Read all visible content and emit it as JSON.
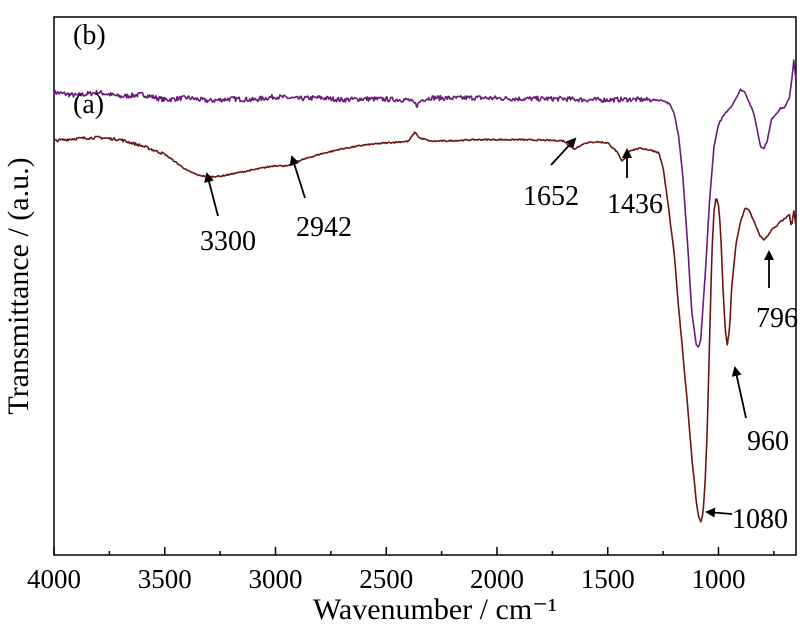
{
  "chart_data": {
    "type": "line",
    "xlabel": "Wavenumber / cm⁻¹",
    "ylabel": "Transmittance / (a.u.)",
    "xlim": [
      4000,
      650
    ],
    "x_reversed": true,
    "ylim": [
      0,
      100
    ],
    "grid": false,
    "xticks": [
      "4000",
      "3500",
      "3000",
      "2500",
      "2000",
      "1500",
      "1000"
    ],
    "xtick_values": [
      4000,
      3500,
      3000,
      2500,
      2000,
      1500,
      1000
    ],
    "series": [
      {
        "name": "(b)",
        "color": "#6a1b7a",
        "points": [
          [
            4000,
            86
          ],
          [
            3900,
            85.4
          ],
          [
            3800,
            86
          ],
          [
            3700,
            85.2
          ],
          [
            3600,
            85.6
          ],
          [
            3500,
            84.6
          ],
          [
            3400,
            85
          ],
          [
            3300,
            84.4
          ],
          [
            3200,
            84.8
          ],
          [
            3100,
            84.6
          ],
          [
            3000,
            85.2
          ],
          [
            2900,
            84.8
          ],
          [
            2800,
            85
          ],
          [
            2700,
            84.6
          ],
          [
            2600,
            84.8
          ],
          [
            2500,
            84.7
          ],
          [
            2400,
            84.6
          ],
          [
            2360,
            83.6
          ],
          [
            2340,
            84.6
          ],
          [
            2300,
            85
          ],
          [
            2200,
            84.9
          ],
          [
            2100,
            85
          ],
          [
            2000,
            84.9
          ],
          [
            1900,
            84.8
          ],
          [
            1800,
            84.8
          ],
          [
            1700,
            84.8
          ],
          [
            1600,
            84.6
          ],
          [
            1500,
            84.6
          ],
          [
            1400,
            84.7
          ],
          [
            1300,
            84.6
          ],
          [
            1250,
            84.5
          ],
          [
            1220,
            83.8
          ],
          [
            1200,
            82
          ],
          [
            1180,
            78
          ],
          [
            1160,
            70
          ],
          [
            1140,
            58
          ],
          [
            1120,
            45
          ],
          [
            1100,
            39
          ],
          [
            1090,
            38.6
          ],
          [
            1080,
            40
          ],
          [
            1060,
            52
          ],
          [
            1040,
            66
          ],
          [
            1020,
            76
          ],
          [
            1000,
            80
          ],
          [
            980,
            81.5
          ],
          [
            960,
            82.5
          ],
          [
            940,
            83.5
          ],
          [
            920,
            85
          ],
          [
            900,
            86.5
          ],
          [
            880,
            86
          ],
          [
            860,
            84
          ],
          [
            840,
            82
          ],
          [
            820,
            78
          ],
          [
            810,
            76
          ],
          [
            796,
            75.5
          ],
          [
            780,
            77
          ],
          [
            760,
            81
          ],
          [
            740,
            82
          ],
          [
            720,
            83
          ],
          [
            700,
            83.2
          ],
          [
            680,
            85
          ],
          [
            670,
            88
          ],
          [
            660,
            92
          ],
          [
            650,
            88
          ]
        ]
      },
      {
        "name": "(a)",
        "color": "#6b1616",
        "points": [
          [
            4000,
            77
          ],
          [
            3900,
            77.4
          ],
          [
            3800,
            77.6
          ],
          [
            3700,
            77.2
          ],
          [
            3600,
            76
          ],
          [
            3500,
            74.5
          ],
          [
            3450,
            73
          ],
          [
            3400,
            71.5
          ],
          [
            3350,
            70.6
          ],
          [
            3300,
            70.3
          ],
          [
            3250,
            70.4
          ],
          [
            3200,
            70.8
          ],
          [
            3100,
            71.6
          ],
          [
            3000,
            72.4
          ],
          [
            2942,
            72.3
          ],
          [
            2900,
            73.2
          ],
          [
            2800,
            74.5
          ],
          [
            2700,
            75.5
          ],
          [
            2600,
            76.2
          ],
          [
            2500,
            76.6
          ],
          [
            2400,
            76.9
          ],
          [
            2370,
            78.6
          ],
          [
            2350,
            77.5
          ],
          [
            2320,
            77.2
          ],
          [
            2300,
            76.9
          ],
          [
            2200,
            77
          ],
          [
            2100,
            77.2
          ],
          [
            2000,
            77.2
          ],
          [
            1900,
            77.2
          ],
          [
            1800,
            77.1
          ],
          [
            1700,
            77
          ],
          [
            1670,
            76
          ],
          [
            1652,
            75.4
          ],
          [
            1630,
            76
          ],
          [
            1600,
            76.6
          ],
          [
            1550,
            76.8
          ],
          [
            1500,
            76.6
          ],
          [
            1460,
            75
          ],
          [
            1436,
            73.2
          ],
          [
            1420,
            73.8
          ],
          [
            1400,
            75.2
          ],
          [
            1350,
            75.6
          ],
          [
            1300,
            75.2
          ],
          [
            1270,
            74.8
          ],
          [
            1250,
            72
          ],
          [
            1230,
            66
          ],
          [
            1200,
            56
          ],
          [
            1180,
            46
          ],
          [
            1160,
            37
          ],
          [
            1140,
            28
          ],
          [
            1120,
            18
          ],
          [
            1100,
            10
          ],
          [
            1090,
            7
          ],
          [
            1080,
            6.2
          ],
          [
            1070,
            7.5
          ],
          [
            1060,
            14
          ],
          [
            1050,
            24
          ],
          [
            1040,
            40
          ],
          [
            1030,
            56
          ],
          [
            1020,
            64
          ],
          [
            1010,
            66.5
          ],
          [
            1000,
            65
          ],
          [
            990,
            60
          ],
          [
            980,
            50
          ],
          [
            970,
            42
          ],
          [
            960,
            39
          ],
          [
            950,
            42
          ],
          [
            940,
            50
          ],
          [
            920,
            58
          ],
          [
            900,
            62
          ],
          [
            880,
            64.5
          ],
          [
            860,
            64
          ],
          [
            840,
            62
          ],
          [
            820,
            60
          ],
          [
            810,
            59.2
          ],
          [
            796,
            58.6
          ],
          [
            780,
            59.2
          ],
          [
            760,
            60.5
          ],
          [
            740,
            61
          ],
          [
            720,
            62
          ],
          [
            700,
            62.5
          ],
          [
            680,
            63.2
          ],
          [
            670,
            61
          ],
          [
            660,
            64
          ],
          [
            650,
            61
          ]
        ]
      }
    ],
    "annotations": [
      {
        "label": "3300",
        "x": 3300
      },
      {
        "label": "2942",
        "x": 2942
      },
      {
        "label": "1652",
        "x": 1652
      },
      {
        "label": "1436",
        "x": 1436
      },
      {
        "label": "796",
        "x": 796
      },
      {
        "label": "960",
        "x": 960
      },
      {
        "label": "1080",
        "x": 1080
      }
    ]
  }
}
